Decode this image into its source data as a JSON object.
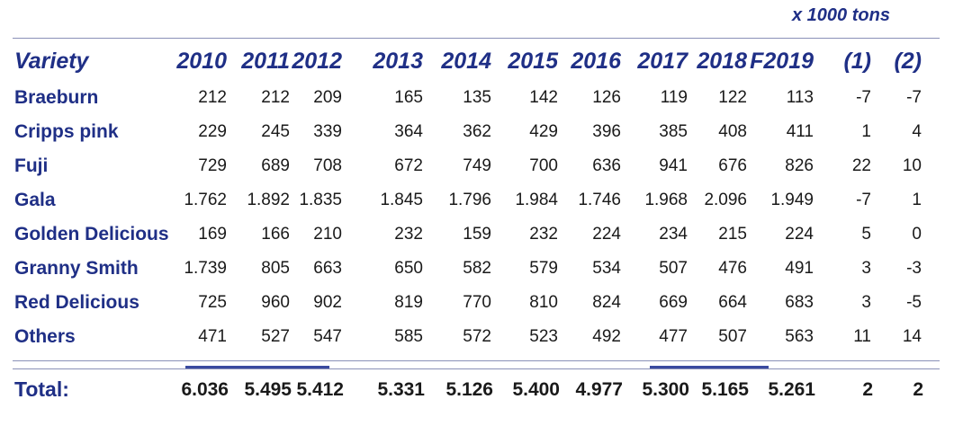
{
  "unit_note": "x 1000 tons",
  "chart_data": {
    "type": "table",
    "columns": [
      "Variety",
      "2010",
      "2011",
      "2012",
      "2013",
      "2014",
      "2015",
      "2016",
      "2017",
      "2018",
      "F2019",
      "(1)",
      "(2)"
    ],
    "rows": [
      {
        "variety": "Braeburn",
        "values": [
          "212",
          "212",
          "209",
          "165",
          "135",
          "142",
          "126",
          "119",
          "122",
          "113",
          "-7",
          "-7"
        ]
      },
      {
        "variety": "Cripps pink",
        "values": [
          "229",
          "245",
          "339",
          "364",
          "362",
          "429",
          "396",
          "385",
          "408",
          "411",
          "1",
          "4"
        ]
      },
      {
        "variety": "Fuji",
        "values": [
          "729",
          "689",
          "708",
          "672",
          "749",
          "700",
          "636",
          "941",
          "676",
          "826",
          "22",
          "10"
        ]
      },
      {
        "variety": "Gala",
        "values": [
          "1.762",
          "1.892",
          "1.835",
          "1.845",
          "1.796",
          "1.984",
          "1.746",
          "1.968",
          "2.096",
          "1.949",
          "-7",
          "1"
        ]
      },
      {
        "variety": "Golden Delicious",
        "values": [
          "169",
          "166",
          "210",
          "232",
          "159",
          "232",
          "224",
          "234",
          "215",
          "224",
          "5",
          "0"
        ]
      },
      {
        "variety": "Granny Smith",
        "values": [
          "1.739",
          "805",
          "663",
          "650",
          "582",
          "579",
          "534",
          "507",
          "476",
          "491",
          "3",
          "-3"
        ]
      },
      {
        "variety": "Red Delicious",
        "values": [
          "725",
          "960",
          "902",
          "819",
          "770",
          "810",
          "824",
          "669",
          "664",
          "683",
          "3",
          "-5"
        ]
      },
      {
        "variety": "Others",
        "values": [
          "471",
          "527",
          "547",
          "585",
          "572",
          "523",
          "492",
          "477",
          "507",
          "563",
          "11",
          "14"
        ]
      }
    ],
    "total": {
      "label": "Total:",
      "values": [
        "6.036",
        "5.495",
        "5.412",
        "5.331",
        "5.126",
        "5.400",
        "4.977",
        "5.300",
        "5.165",
        "5.261",
        "2",
        "2"
      ]
    }
  }
}
